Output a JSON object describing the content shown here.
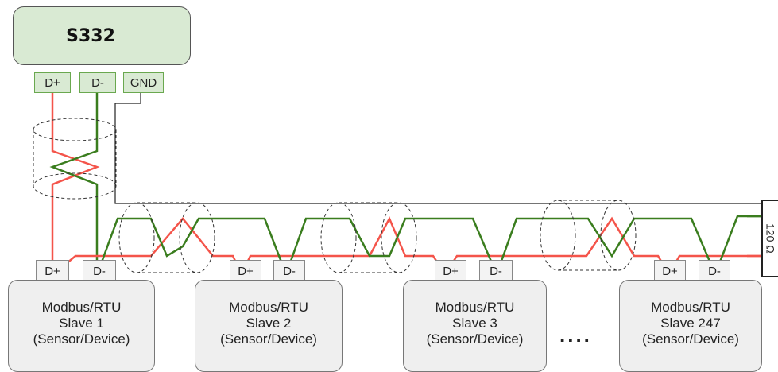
{
  "master": {
    "title": "S332",
    "terminals": [
      "D+",
      "D-",
      "GND"
    ]
  },
  "slaves": [
    {
      "terminal_plus": "D+",
      "terminal_minus": "D-",
      "line1": "Modbus/RTU",
      "line2": "Slave 1",
      "line3": "(Sensor/Device)"
    },
    {
      "terminal_plus": "D+",
      "terminal_minus": "D-",
      "line1": "Modbus/RTU",
      "line2": "Slave 2",
      "line3": "(Sensor/Device)"
    },
    {
      "terminal_plus": "D+",
      "terminal_minus": "D-",
      "line1": "Modbus/RTU",
      "line2": "Slave 3",
      "line3": "(Sensor/Device)"
    },
    {
      "terminal_plus": "D+",
      "terminal_minus": "D-",
      "line1": "Modbus/RTU",
      "line2": "Slave 247",
      "line3": "(Sensor/Device)"
    }
  ],
  "ellipsis": "....",
  "terminator": {
    "label": "120 Ω"
  },
  "colors": {
    "d_plus_wire": "#f4544a",
    "d_minus_wire": "#3a7d1e",
    "gnd_wire": "#222222",
    "master_fill": "#d9ead3",
    "slave_fill": "#efefef"
  }
}
